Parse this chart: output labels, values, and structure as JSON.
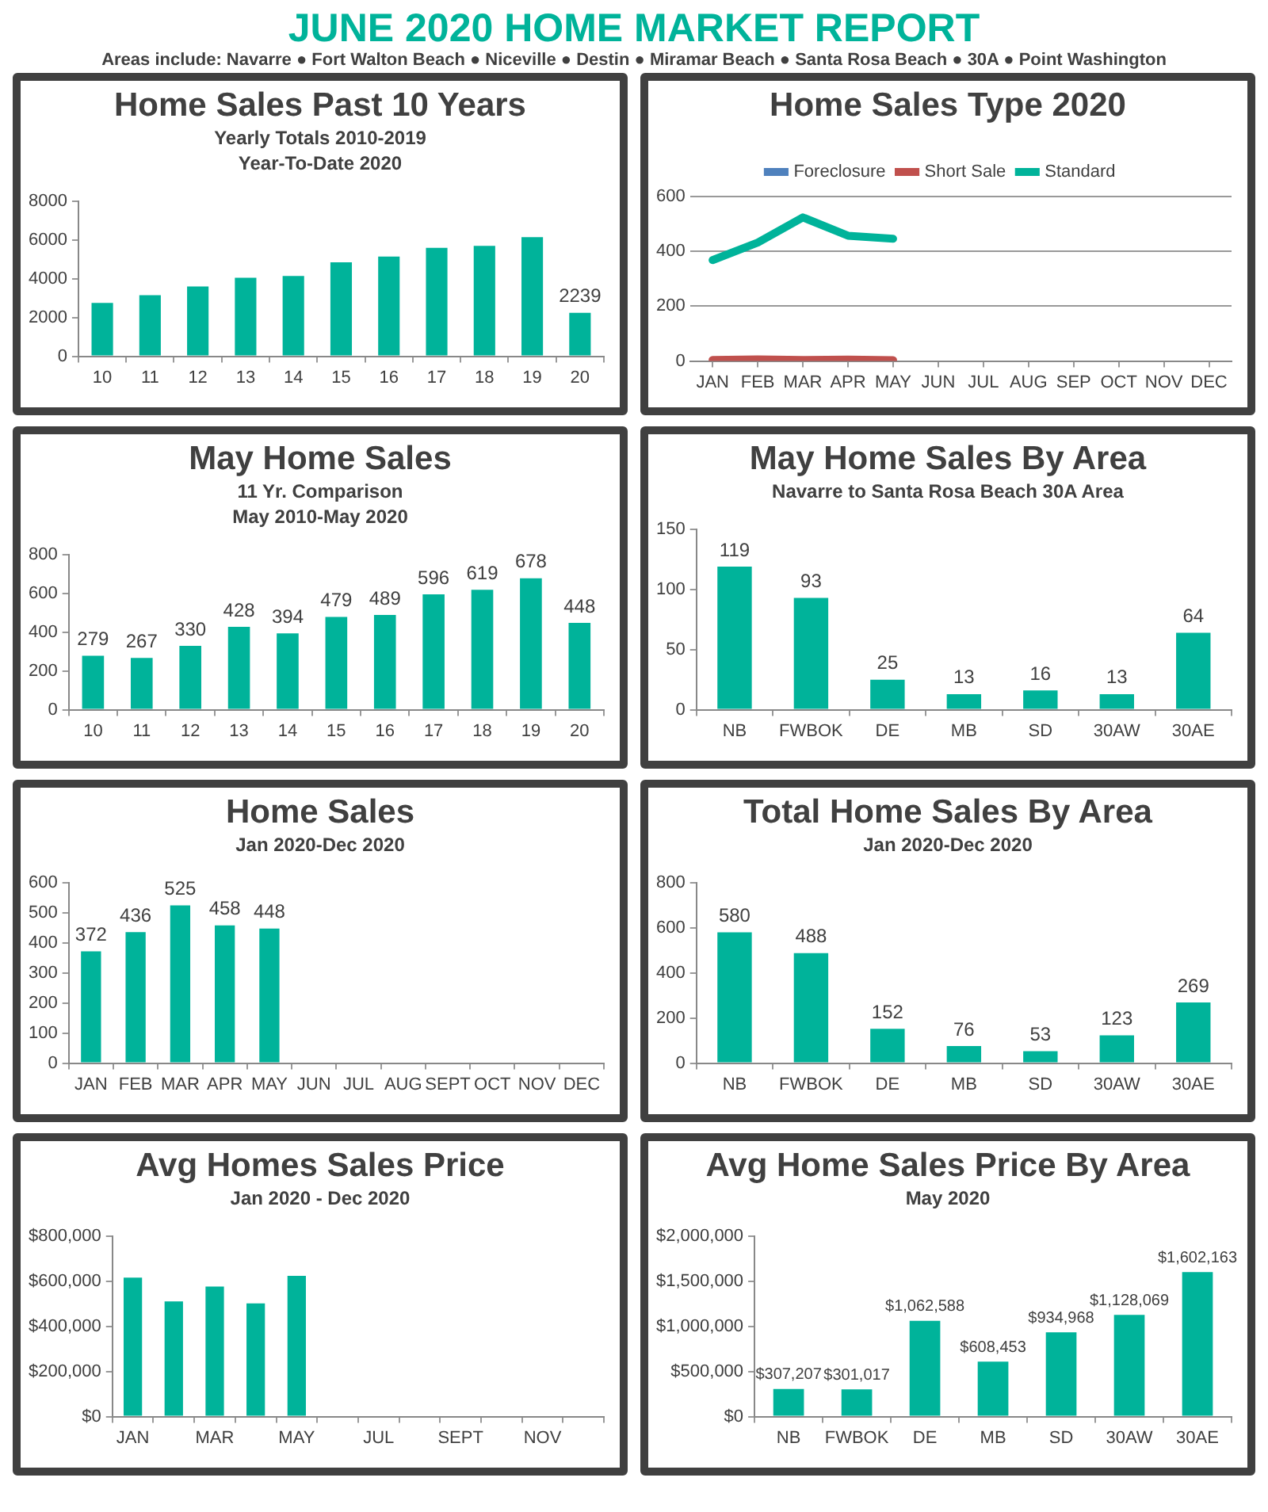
{
  "chart_data": [
    {
      "type": "other",
      "title": "JUNE 2020 HOME MARKET REPORT",
      "subtitle": "Areas include:  Navarre ● Fort Walton Beach ● Niceville ●  Destin  ● Miramar Beach ● Santa Rosa Beach ● 30A ● Point  Washington"
    },
    {
      "type": "bar",
      "title": "Home Sales Past 10 Years",
      "subtitle": "Yearly Totals 2010-2019\nYear-To-Date 2020",
      "categories": [
        "10",
        "11",
        "12",
        "13",
        "14",
        "15",
        "16",
        "17",
        "18",
        "19",
        "20"
      ],
      "series": [
        {
          "color": "#00b39a",
          "values": [
            2750,
            3150,
            3600,
            4050,
            4150,
            4850,
            5150,
            5600,
            5700,
            6150,
            2239
          ],
          "value_labels": [
            null,
            null,
            null,
            null,
            null,
            null,
            null,
            null,
            null,
            null,
            "2239"
          ]
        }
      ],
      "ylim": [
        0,
        8000
      ],
      "yticks": [
        0,
        2000,
        4000,
        6000,
        8000
      ]
    },
    {
      "type": "line",
      "title": "Home Sales Type 2020",
      "categories": [
        "JAN",
        "FEB",
        "MAR",
        "APR",
        "MAY",
        "JUN",
        "JUL",
        "AUG",
        "SEP",
        "OCT",
        "NOV",
        "DEC"
      ],
      "series": [
        {
          "name": "Foreclosure",
          "color": "#4f81bd",
          "values": [
            null,
            null,
            null,
            null,
            null,
            null,
            null,
            null,
            null,
            null,
            null,
            null
          ]
        },
        {
          "name": "Short Sale",
          "color": "#c0504d",
          "values": [
            4,
            6,
            4,
            5,
            3,
            null,
            null,
            null,
            null,
            null,
            null,
            null
          ]
        },
        {
          "name": "Standard",
          "color": "#00b39a",
          "values": [
            368,
            432,
            524,
            457,
            446,
            null,
            null,
            null,
            null,
            null,
            null,
            null
          ]
        }
      ],
      "ylim": [
        0,
        600
      ],
      "yticks": [
        0,
        200,
        400,
        600
      ],
      "grid": "y",
      "legend": "top",
      "marker": "none",
      "line_style": "solid"
    },
    {
      "type": "bar",
      "title": "May Home Sales",
      "subtitle": "11 Yr. Comparison\nMay 2010-May 2020",
      "categories": [
        "10",
        "11",
        "12",
        "13",
        "14",
        "15",
        "16",
        "17",
        "18",
        "19",
        "20"
      ],
      "values": [
        279,
        267,
        330,
        428,
        394,
        479,
        489,
        596,
        619,
        678,
        448
      ],
      "color": "#00b39a",
      "data_labels": true,
      "ylim": [
        0,
        800
      ],
      "yticks": [
        0,
        200,
        400,
        600,
        800
      ]
    },
    {
      "type": "bar",
      "title": "May Home Sales By Area",
      "subtitle": "Navarre to Santa Rosa Beach 30A Area",
      "categories": [
        "NB",
        "FWBOK",
        "DE",
        "MB",
        "SD",
        "30AW",
        "30AE"
      ],
      "values": [
        119,
        93,
        25,
        13,
        16,
        13,
        64
      ],
      "color": "#00b39a",
      "data_labels": true,
      "ylim": [
        0,
        150
      ],
      "yticks": [
        0,
        50,
        100,
        150
      ]
    },
    {
      "type": "bar",
      "title": "Home Sales",
      "subtitle": "Jan 2020-Dec 2020",
      "categories": [
        "JAN",
        "FEB",
        "MAR",
        "APR",
        "MAY",
        "JUN",
        "JUL",
        "AUG",
        "SEPT",
        "OCT",
        "NOV",
        "DEC"
      ],
      "values": [
        372,
        436,
        525,
        458,
        448,
        null,
        null,
        null,
        null,
        null,
        null,
        null
      ],
      "color": "#00b39a",
      "data_labels": true,
      "ylim": [
        0,
        600
      ],
      "yticks": [
        0,
        100,
        200,
        300,
        400,
        500,
        600
      ]
    },
    {
      "type": "bar",
      "title": "Total Home Sales By Area",
      "subtitle": "Jan 2020-Dec 2020",
      "categories": [
        "NB",
        "FWBOK",
        "DE",
        "MB",
        "SD",
        "30AW",
        "30AE"
      ],
      "values": [
        580,
        488,
        152,
        76,
        53,
        123,
        269
      ],
      "color": "#00b39a",
      "data_labels": true,
      "ylim": [
        0,
        800
      ],
      "yticks": [
        0,
        200,
        400,
        600,
        800
      ]
    },
    {
      "type": "bar",
      "title": "Avg Homes Sales Price",
      "subtitle": "Jan 2020 - Dec 2020",
      "categories": [
        "JAN",
        null,
        "MAR",
        null,
        "MAY",
        null,
        "JUL",
        null,
        "SEPT",
        null,
        "NOV",
        null
      ],
      "values": [
        616000,
        511000,
        577000,
        502000,
        624000,
        null,
        null,
        null,
        null,
        null,
        null,
        null
      ],
      "color": "#00b39a",
      "ylim": [
        0,
        800000
      ],
      "yticks": [
        {
          "value": 0,
          "label": "$0"
        },
        {
          "value": 200000,
          "label": "$200,000"
        },
        {
          "value": 400000,
          "label": "$400,000"
        },
        {
          "value": 600000,
          "label": "$600,000"
        },
        {
          "value": 800000,
          "label": "$800,000"
        }
      ]
    },
    {
      "type": "bar",
      "title": "Avg Home Sales Price By Area",
      "subtitle": "May 2020",
      "categories": [
        "NB",
        "FWBOK",
        "DE",
        "MB",
        "SD",
        "30AW",
        "30AE"
      ],
      "series": [
        {
          "color": "#00b39a",
          "values": [
            307207,
            301017,
            1062588,
            608453,
            934968,
            1128069,
            1602163
          ],
          "value_labels": [
            "$307,207",
            "$301,017",
            "$1,062,588",
            "$608,453",
            "$934,968",
            "$1,128,069",
            "$1,602,163"
          ]
        }
      ],
      "ylim": [
        0,
        2000000
      ],
      "yticks": [
        {
          "value": 0,
          "label": "$0"
        },
        {
          "value": 500000,
          "label": "$500,000"
        },
        {
          "value": 1000000,
          "label": "$1,000,000"
        },
        {
          "value": 1500000,
          "label": "$1,500,000"
        },
        {
          "value": 2000000,
          "label": "$2,000,000"
        }
      ]
    }
  ]
}
